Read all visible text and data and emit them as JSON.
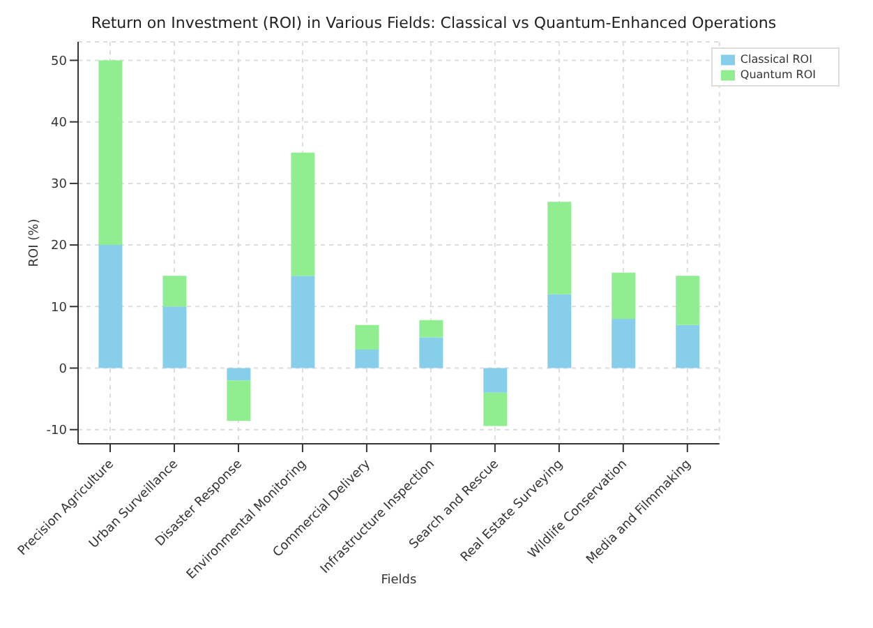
{
  "chart_data": {
    "type": "bar",
    "title": "Return on Investment (ROI) in Various Fields: Classical vs Quantum-Enhanced Operations",
    "xlabel": "Fields",
    "ylabel": "ROI (%)",
    "categories": [
      "Precision Agriculture",
      "Urban Surveillance",
      "Disaster Response",
      "Environmental Monitoring",
      "Commercial Delivery",
      "Infrastructure Inspection",
      "Search and Rescue",
      "Real Estate Surveying",
      "Wildlife Conservation",
      "Media and Filmmaking"
    ],
    "series": [
      {
        "name": "Classical ROI",
        "color": "#87ceeb",
        "values": [
          20,
          10,
          -2,
          15,
          3,
          5,
          -4,
          12,
          8,
          7
        ]
      },
      {
        "name": "Quantum ROI",
        "color": "#90ee90",
        "values": [
          30,
          5,
          -6.6,
          20,
          4,
          2.8,
          -5.4,
          15,
          7.5,
          8
        ]
      }
    ],
    "stacked": true,
    "ylim": [
      -12.3,
      53
    ],
    "yticks": [
      -10,
      0,
      10,
      20,
      30,
      40,
      50
    ],
    "grid": true,
    "legend": "top right"
  }
}
